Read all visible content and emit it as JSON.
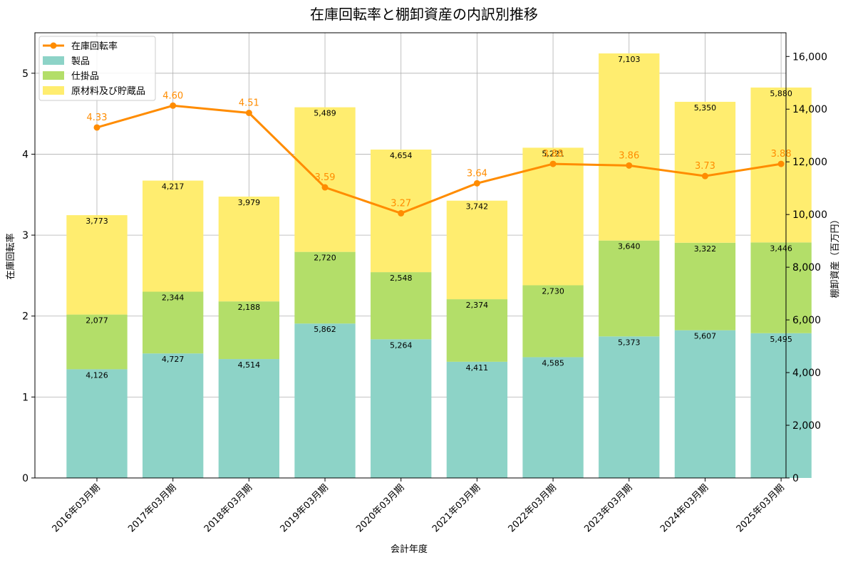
{
  "chart_data": {
    "type": "bar",
    "title": "在庫回転率と棚卸資産の内訳別推移",
    "xlabel": "会計年度",
    "ylabel_left": "在庫回転率",
    "ylabel_right": "棚卸資産（百万円）",
    "categories": [
      "2016年03月期",
      "2017年03月期",
      "2018年03月期",
      "2019年03月期",
      "2020年03月期",
      "2021年03月期",
      "2022年03月期",
      "2023年03月期",
      "2024年03月期",
      "2025年03月期"
    ],
    "stacked_series": [
      {
        "name": "製品",
        "color": "#8dd3c7",
        "values": [
          4126,
          4727,
          4514,
          5862,
          5264,
          4411,
          4585,
          5373,
          5607,
          5495
        ],
        "labels": [
          "4,126",
          "4,727",
          "4,514",
          "5,862",
          "5,264",
          "4,411",
          "4,585",
          "5,373",
          "5,607",
          "5,495"
        ]
      },
      {
        "name": "仕掛品",
        "color": "#b3de69",
        "values": [
          2077,
          2344,
          2188,
          2720,
          2548,
          2374,
          2730,
          3640,
          3322,
          3446
        ],
        "labels": [
          "2,077",
          "2,344",
          "2,188",
          "2,720",
          "2,548",
          "2,374",
          "2,730",
          "3,640",
          "3,322",
          "3,446"
        ]
      },
      {
        "name": "原材料及び貯蔵品",
        "color": "#ffed6f",
        "values": [
          3773,
          4217,
          3979,
          5489,
          4654,
          3742,
          5221,
          7103,
          5350,
          5880
        ],
        "labels": [
          "3,773",
          "4,217",
          "3,979",
          "5,489",
          "4,654",
          "3,742",
          "5,221",
          "7,103",
          "5,350",
          "5,880"
        ]
      }
    ],
    "line_series": {
      "name": "在庫回転率",
      "color": "#ff8c00",
      "values": [
        4.33,
        4.6,
        4.51,
        3.59,
        3.27,
        3.64,
        3.88,
        3.86,
        3.73,
        3.88
      ],
      "labels": [
        "4.33",
        "4.60",
        "4.51",
        "3.59",
        "3.27",
        "3.64",
        "3.88",
        "3.86",
        "3.73",
        "3.88"
      ]
    },
    "ylim_left": [
      0,
      5.5
    ],
    "ylim_right": [
      0,
      16900
    ],
    "yticks_left": [
      0,
      1,
      2,
      3,
      4,
      5
    ],
    "yticks_left_labels": [
      "0",
      "1",
      "2",
      "3",
      "4",
      "5"
    ],
    "yticks_right": [
      0,
      2000,
      4000,
      6000,
      8000,
      10000,
      12000,
      14000,
      16000
    ],
    "yticks_right_labels": [
      "0",
      "2,000",
      "4,000",
      "6,000",
      "8,000",
      "10,000",
      "12,000",
      "14,000",
      "16,000"
    ],
    "grid": true,
    "legend_placement": "top-left"
  }
}
